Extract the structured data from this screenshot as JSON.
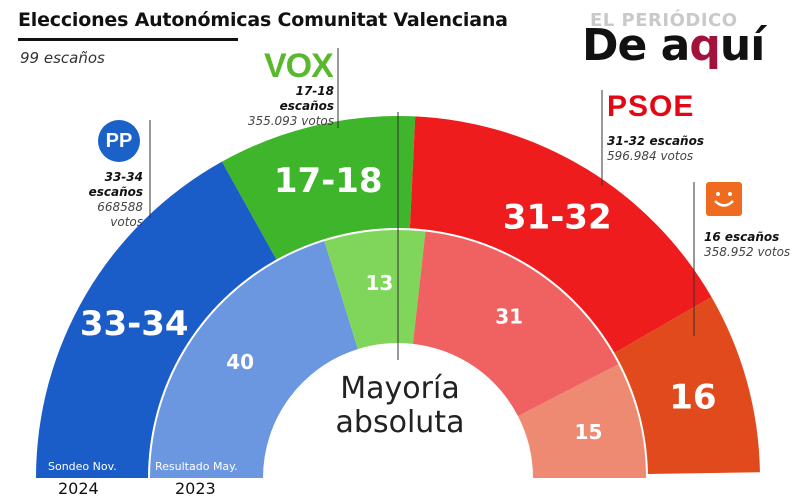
{
  "header": {
    "title": "Elecciones Autonómicas Comunitat Valenciana",
    "subtitle": "99 escaños"
  },
  "brand": {
    "top": "EL PERIÓDICO",
    "bottom_a": "De a",
    "bottom_q": "q",
    "bottom_b": "uí"
  },
  "center_label": {
    "line1": "Mayoría",
    "line2": "absoluta"
  },
  "parties": {
    "pp": {
      "logo": "PP",
      "seats": "33-34 escaños",
      "votes": "668588 votos"
    },
    "vox": {
      "logo": "VOX",
      "seats": "17-18 escaños",
      "votes": "355.093 votos"
    },
    "psoe": {
      "logo": "PSOE",
      "seats": "31-32 escaños",
      "votes": "596.984 votos"
    },
    "compromis": {
      "logo": "compromis-smile-icon",
      "seats": "16 escaños",
      "votes": "358.952 votos"
    }
  },
  "rings": {
    "outer": {
      "label": "Sondeo Nov.",
      "year": "2024"
    },
    "inner": {
      "label": "Resultado May.",
      "year": "2023"
    }
  },
  "chart_data": {
    "type": "semicircle",
    "total_seats": 99,
    "series": [
      {
        "name": "Sondeo Nov. 2024",
        "ring": "outer",
        "segments": [
          {
            "party": "PP",
            "label": "33-34",
            "value": 33.5,
            "color": "#1a5cc8"
          },
          {
            "party": "VOX",
            "label": "17-18",
            "value": 17.5,
            "color": "#3eb52a"
          },
          {
            "party": "PSOE",
            "label": "31-32",
            "value": 31.5,
            "color": "#ee1c1c"
          },
          {
            "party": "Compromís",
            "label": "16",
            "value": 16,
            "color": "#e04a1c"
          }
        ]
      },
      {
        "name": "Resultado May. 2023",
        "ring": "inner",
        "segments": [
          {
            "party": "PP",
            "label": "40",
            "value": 40,
            "color": "#6b96e0"
          },
          {
            "party": "VOX",
            "label": "13",
            "value": 13,
            "color": "#7fd65a"
          },
          {
            "party": "PSOE",
            "label": "31",
            "value": 31,
            "color": "#f06262"
          },
          {
            "party": "Compromís",
            "label": "15",
            "value": 15,
            "color": "#ee8a72"
          }
        ]
      }
    ]
  }
}
